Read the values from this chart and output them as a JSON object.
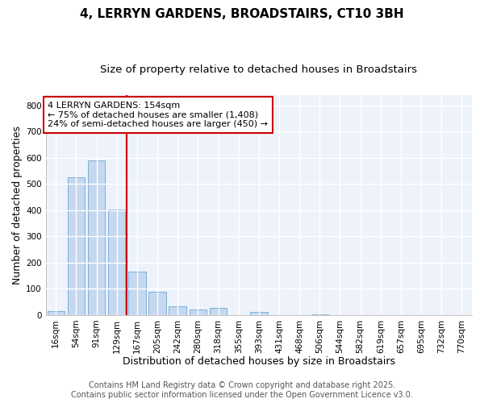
{
  "title1": "4, LERRYN GARDENS, BROADSTAIRS, CT10 3BH",
  "title2": "Size of property relative to detached houses in Broadstairs",
  "xlabel": "Distribution of detached houses by size in Broadstairs",
  "ylabel": "Number of detached properties",
  "bar_labels": [
    "16sqm",
    "54sqm",
    "91sqm",
    "129sqm",
    "167sqm",
    "205sqm",
    "242sqm",
    "280sqm",
    "318sqm",
    "355sqm",
    "393sqm",
    "431sqm",
    "468sqm",
    "506sqm",
    "544sqm",
    "582sqm",
    "619sqm",
    "657sqm",
    "695sqm",
    "732sqm",
    "770sqm"
  ],
  "bar_values": [
    14,
    527,
    590,
    402,
    165,
    88,
    33,
    22,
    27,
    0,
    12,
    0,
    0,
    2,
    0,
    0,
    0,
    0,
    0,
    0,
    0
  ],
  "bar_color": "#c5d8f0",
  "bar_edge_color": "#7bafd4",
  "vline_x": 3.5,
  "vline_color": "#cc0000",
  "annotation_text": "4 LERRYN GARDENS: 154sqm\n← 75% of detached houses are smaller (1,408)\n24% of semi-detached houses are larger (450) →",
  "annotation_box_color": "#ffffff",
  "annotation_box_edgecolor": "#cc0000",
  "ylim": [
    0,
    840
  ],
  "yticks": [
    0,
    100,
    200,
    300,
    400,
    500,
    600,
    700,
    800
  ],
  "footer1": "Contains HM Land Registry data © Crown copyright and database right 2025.",
  "footer2": "Contains public sector information licensed under the Open Government Licence v3.0.",
  "bg_color": "#ffffff",
  "plot_bg_color": "#eef2fb",
  "grid_color": "#ffffff",
  "title_fontsize": 11,
  "subtitle_fontsize": 9.5,
  "axis_label_fontsize": 9,
  "tick_fontsize": 7.5,
  "annotation_fontsize": 8,
  "footer_fontsize": 7
}
